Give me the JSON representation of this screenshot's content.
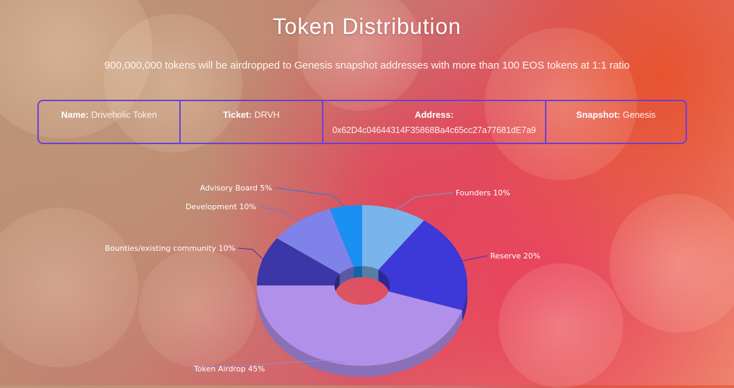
{
  "page": {
    "title": "Token Distribution",
    "subtitle": "900,000,000 tokens will be airdropped to Genesis snapshot addresses with more than 100 EOS tokens at 1:1 ratio"
  },
  "info": {
    "name_label": "Name:",
    "name_value": "Driveholic Token",
    "ticket_label": "Ticket:",
    "ticket_value": "DRVH",
    "address_label": "Address:",
    "address_value": "0x62D4c04644314F35868Ba4c65cc27a77681dE7a9",
    "snapshot_label": "Snapshot:",
    "snapshot_value": "Genesis"
  },
  "colors": {
    "border": "#6a3fd6"
  },
  "chart_data": {
    "type": "pie",
    "variant": "3d-donut",
    "slices": [
      {
        "label": "Founders",
        "value": 10,
        "display": "Founders 10%",
        "color": "#7ab4ec"
      },
      {
        "label": "Reserve",
        "value": 20,
        "display": "Reserve 20%",
        "color": "#3d38d8"
      },
      {
        "label": "Token Airdrop",
        "value": 45,
        "display": "Token Airdrop 45%",
        "color": "#b190ea"
      },
      {
        "label": "Bounties/existing community",
        "value": 10,
        "display": "Bounties/existing community 10%",
        "color": "#3b37a8"
      },
      {
        "label": "Development",
        "value": 10,
        "display": "Development 10%",
        "color": "#7f82e8"
      },
      {
        "label": "Advisory Board",
        "value": 5,
        "display": "Advisory Board 5%",
        "color": "#1a90f2"
      }
    ],
    "legend": "none"
  }
}
